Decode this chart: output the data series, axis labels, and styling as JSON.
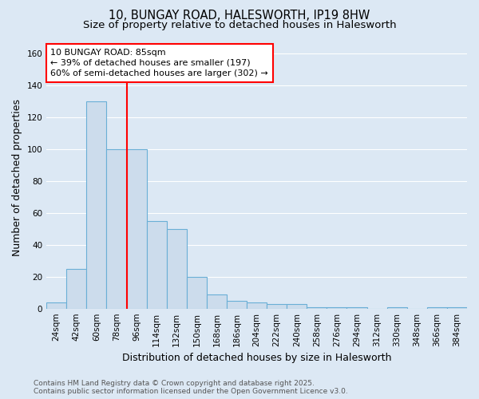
{
  "title_line1": "10, BUNGAY ROAD, HALESWORTH, IP19 8HW",
  "title_line2": "Size of property relative to detached houses in Halesworth",
  "xlabel": "Distribution of detached houses by size in Halesworth",
  "ylabel": "Number of detached properties",
  "footnote": "Contains HM Land Registry data © Crown copyright and database right 2025.\nContains public sector information licensed under the Open Government Licence v3.0.",
  "categories": [
    "24sqm",
    "42sqm",
    "60sqm",
    "78sqm",
    "96sqm",
    "114sqm",
    "132sqm",
    "150sqm",
    "168sqm",
    "186sqm",
    "204sqm",
    "222sqm",
    "240sqm",
    "258sqm",
    "276sqm",
    "294sqm",
    "312sqm",
    "330sqm",
    "348sqm",
    "366sqm",
    "384sqm"
  ],
  "values": [
    4,
    25,
    130,
    100,
    100,
    55,
    50,
    20,
    9,
    5,
    4,
    3,
    3,
    1,
    1,
    1,
    0,
    1,
    0,
    1,
    1
  ],
  "bar_color": "#ccdcec",
  "bar_edge_color": "#6aafd6",
  "red_line_index": 3.5,
  "annotation_text": "10 BUNGAY ROAD: 85sqm\n← 39% of detached houses are smaller (197)\n60% of semi-detached houses are larger (302) →",
  "annotation_box_facecolor": "white",
  "annotation_box_edgecolor": "red",
  "ylim": [
    0,
    165
  ],
  "yticks": [
    0,
    20,
    40,
    60,
    80,
    100,
    120,
    140,
    160
  ],
  "background_color": "#dce8f4",
  "plot_background_color": "#dce8f4",
  "grid_color": "white",
  "title_fontsize": 10.5,
  "subtitle_fontsize": 9.5,
  "axis_label_fontsize": 9,
  "tick_fontsize": 7.5,
  "annotation_fontsize": 8,
  "footnote_fontsize": 6.5
}
